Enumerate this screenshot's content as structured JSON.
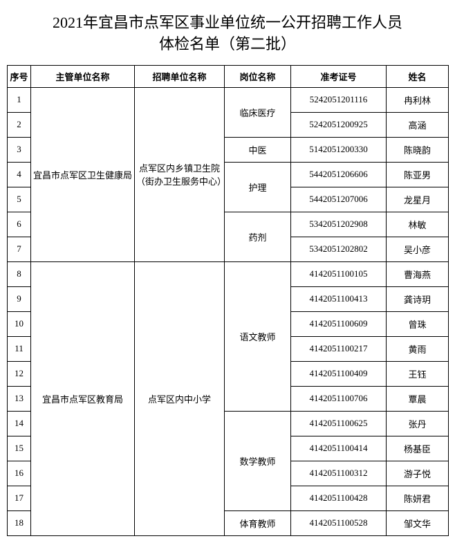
{
  "title_line1": "2021年宜昌市点军区事业单位统一公开招聘工作人员",
  "title_line2": "体检名单（第二批）",
  "columns": [
    "序号",
    "主管单位名称",
    "招聘单位名称",
    "岗位名称",
    "准考证号",
    "姓名"
  ],
  "depts": [
    {
      "name": "宜昌市点军区卫生健康局",
      "units": [
        {
          "name": "点军区内乡镇卫生院（街办卫生服务中心）",
          "positions": [
            {
              "name": "临床医疗",
              "rows": [
                {
                  "seq": "1",
                  "ticket": "5242051201116",
                  "person": "冉利林"
                },
                {
                  "seq": "2",
                  "ticket": "5242051200925",
                  "person": "高涵"
                }
              ]
            },
            {
              "name": "中医",
              "rows": [
                {
                  "seq": "3",
                  "ticket": "5142051200330",
                  "person": "陈晓韵"
                }
              ]
            },
            {
              "name": "护理",
              "rows": [
                {
                  "seq": "4",
                  "ticket": "5442051206606",
                  "person": "陈亚男"
                },
                {
                  "seq": "5",
                  "ticket": "5442051207006",
                  "person": "龙星月"
                }
              ]
            },
            {
              "name": "药剂",
              "rows": [
                {
                  "seq": "6",
                  "ticket": "5342051202908",
                  "person": "林敏"
                },
                {
                  "seq": "7",
                  "ticket": "5342051202802",
                  "person": "吴小彦"
                }
              ]
            }
          ]
        }
      ]
    },
    {
      "name": "宜昌市点军区教育局",
      "units": [
        {
          "name": "点军区内中小学",
          "positions": [
            {
              "name": "语文教师",
              "rows": [
                {
                  "seq": "8",
                  "ticket": "4142051100105",
                  "person": "曹海燕"
                },
                {
                  "seq": "9",
                  "ticket": "4142051100413",
                  "person": "龚诗玥"
                },
                {
                  "seq": "10",
                  "ticket": "4142051100609",
                  "person": "曾珠"
                },
                {
                  "seq": "11",
                  "ticket": "4142051100217",
                  "person": "黄雨"
                },
                {
                  "seq": "12",
                  "ticket": "4142051100409",
                  "person": "王钰"
                },
                {
                  "seq": "13",
                  "ticket": "4142051100706",
                  "person": "覃晨"
                }
              ]
            },
            {
              "name": "数学教师",
              "rows": [
                {
                  "seq": "14",
                  "ticket": "4142051100625",
                  "person": "张丹"
                },
                {
                  "seq": "15",
                  "ticket": "4142051100414",
                  "person": "杨基臣"
                },
                {
                  "seq": "16",
                  "ticket": "4142051100312",
                  "person": "游子悦"
                },
                {
                  "seq": "17",
                  "ticket": "4142051100428",
                  "person": "陈妍君"
                }
              ]
            },
            {
              "name": "体育教师",
              "rows": [
                {
                  "seq": "18",
                  "ticket": "4142051100528",
                  "person": "邹文华"
                }
              ]
            }
          ]
        }
      ]
    }
  ]
}
